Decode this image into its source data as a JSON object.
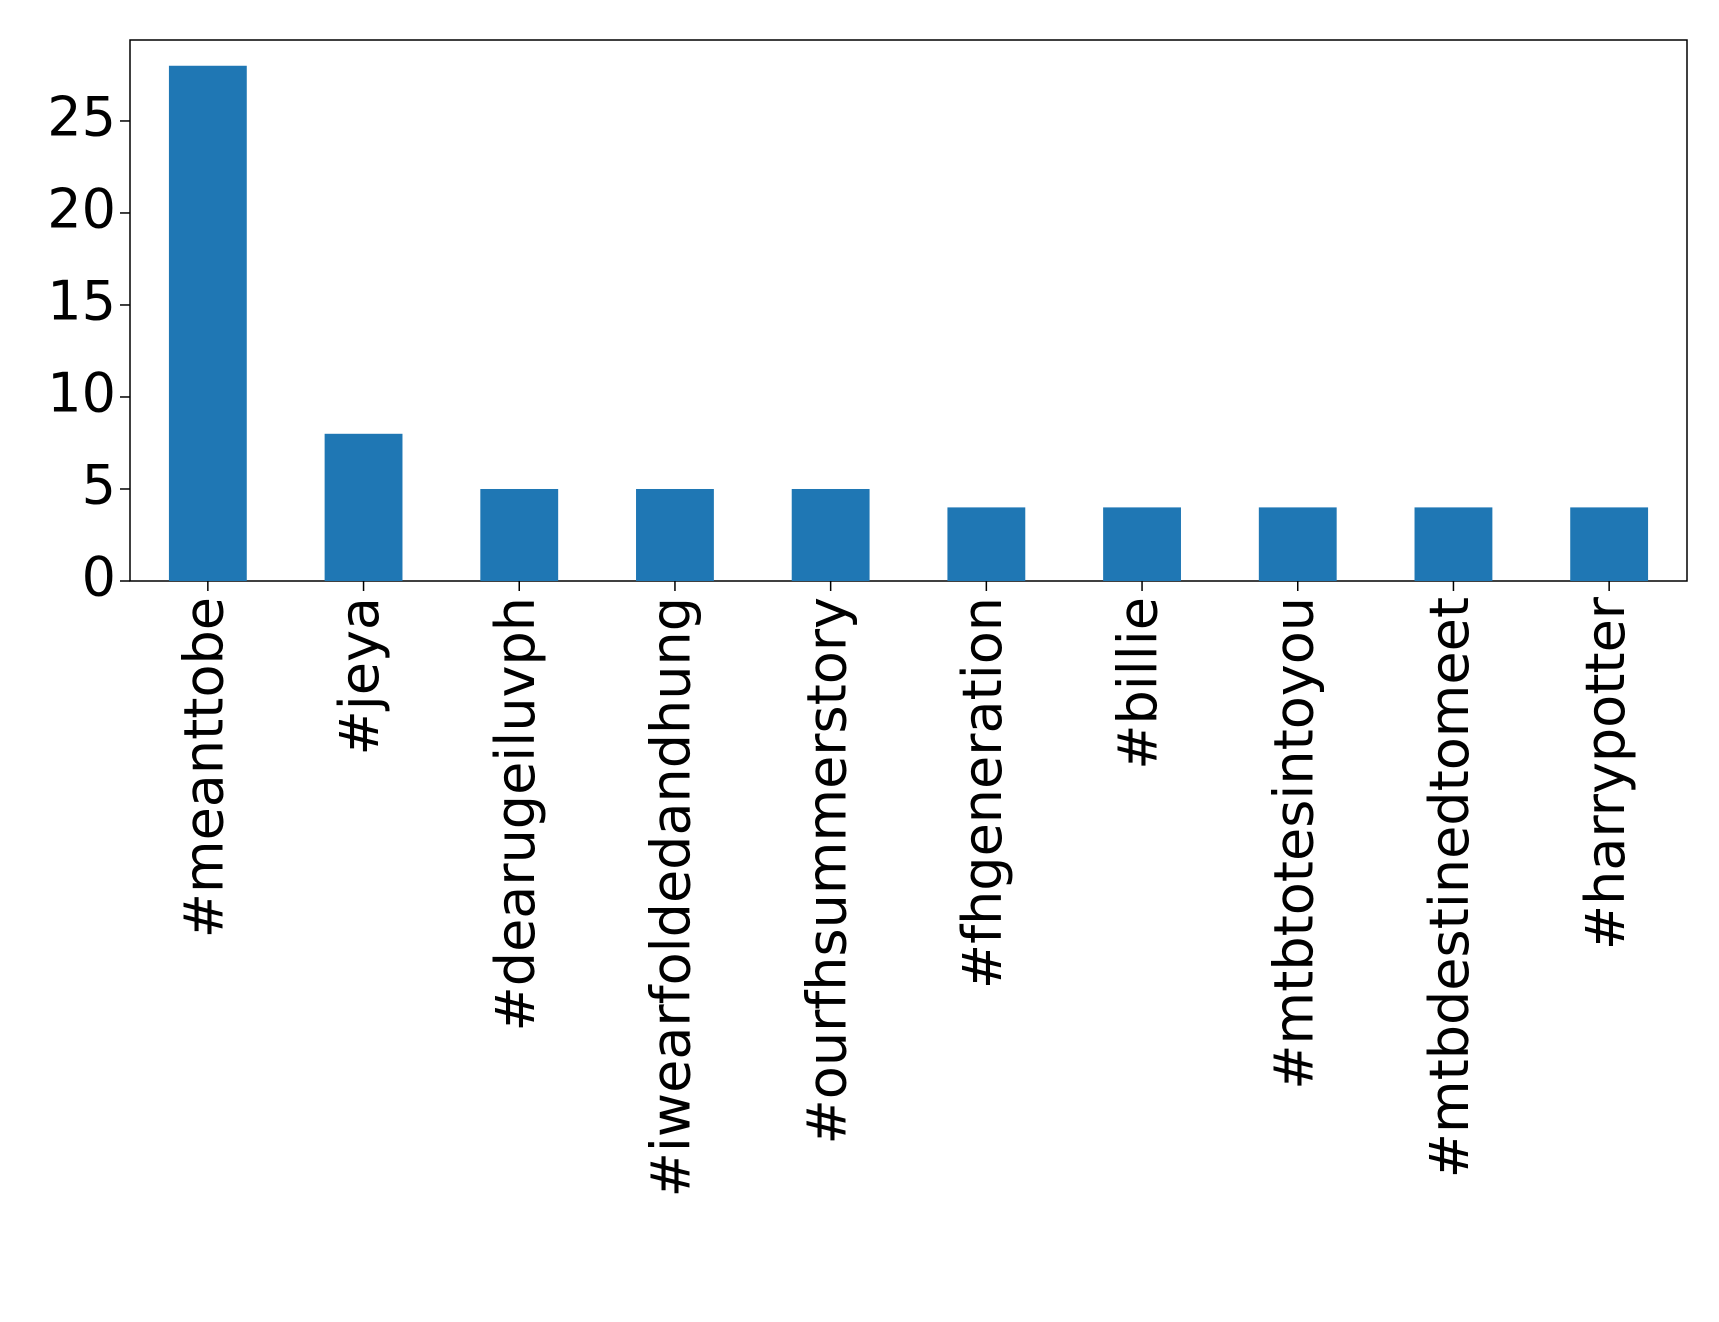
{
  "chart_data": {
    "type": "bar",
    "categories": [
      "#meanttobe",
      "#jeya",
      "#dearugeiluvph",
      "#iwearfoldedandhung",
      "#ourfhsummerstory",
      "#fhgeneration",
      "#billie",
      "#mtbtotesintoyou",
      "#mtbdestinedtomeet",
      "#harrypotter"
    ],
    "values": [
      28,
      8,
      5,
      5,
      5,
      4,
      4,
      4,
      4,
      4
    ],
    "color": "#1f77b4",
    "ylim": [
      0,
      29.4
    ],
    "yticks": [
      0,
      5,
      10,
      15,
      20,
      25
    ],
    "grid": false
  }
}
